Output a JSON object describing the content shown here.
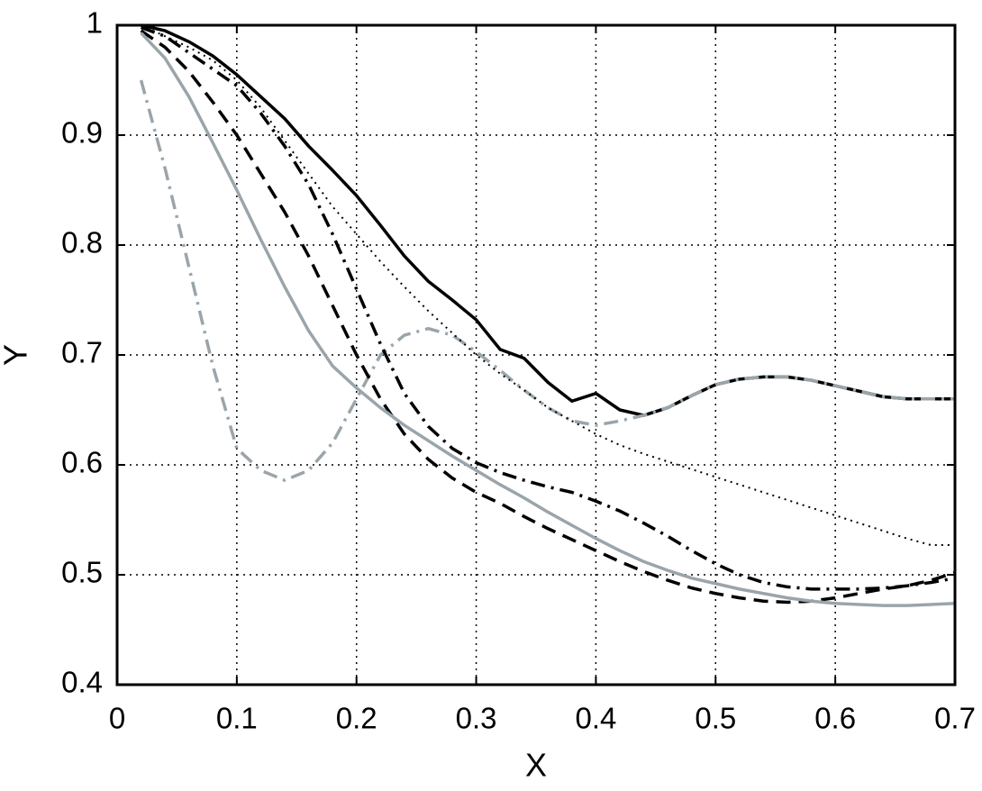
{
  "chart_data": {
    "type": "line",
    "x_label": "X",
    "y_label": "Y",
    "x": [
      0.02,
      0.04,
      0.06,
      0.08,
      0.1,
      0.12,
      0.14,
      0.16,
      0.18,
      0.2,
      0.22,
      0.24,
      0.26,
      0.28,
      0.3,
      0.32,
      0.34,
      0.36,
      0.38,
      0.4,
      0.42,
      0.44,
      0.46,
      0.48,
      0.5,
      0.52,
      0.54,
      0.56,
      0.58,
      0.6,
      0.62,
      0.64,
      0.66,
      0.68,
      0.7
    ],
    "series": [
      {
        "color": "#000000",
        "dash": "solid",
        "values": [
          1.0,
          0.995,
          0.985,
          0.972,
          0.955,
          0.935,
          0.915,
          0.89,
          0.868,
          0.845,
          0.818,
          0.79,
          0.767,
          0.75,
          0.732,
          0.705,
          0.697,
          0.675,
          0.658,
          0.665,
          0.65,
          0.645,
          0.652,
          0.663,
          0.673,
          0.678,
          0.68,
          0.68,
          0.677,
          0.672,
          0.667,
          0.662,
          0.66,
          0.66,
          0.66
        ]
      },
      {
        "color": "#9aa5ab",
        "dash": "dashdot",
        "values": [
          0.95,
          0.87,
          0.78,
          0.69,
          0.615,
          0.595,
          0.586,
          0.595,
          0.62,
          0.66,
          0.7,
          0.718,
          0.724,
          0.718,
          0.703,
          0.686,
          0.668,
          0.652,
          0.64,
          0.636,
          0.64,
          0.645,
          0.652,
          0.663,
          0.673,
          0.678,
          0.68,
          0.68,
          0.677,
          0.672,
          0.667,
          0.662,
          0.66,
          0.66,
          0.66
        ]
      },
      {
        "color": "#000000",
        "dash": "dotted",
        "values": [
          1.0,
          0.99,
          0.98,
          0.968,
          0.95,
          0.925,
          0.895,
          0.865,
          0.835,
          0.81,
          0.785,
          0.762,
          0.74,
          0.72,
          0.7,
          0.683,
          0.668,
          0.652,
          0.64,
          0.628,
          0.618,
          0.61,
          0.603,
          0.596,
          0.589,
          0.582,
          0.575,
          0.568,
          0.561,
          0.554,
          0.547,
          0.54,
          0.533,
          0.527,
          0.527
        ]
      },
      {
        "color": "#000000",
        "dash": "dashdot",
        "values": [
          0.998,
          0.99,
          0.975,
          0.96,
          0.945,
          0.92,
          0.89,
          0.855,
          0.81,
          0.76,
          0.71,
          0.665,
          0.635,
          0.615,
          0.602,
          0.593,
          0.586,
          0.58,
          0.575,
          0.567,
          0.558,
          0.547,
          0.535,
          0.522,
          0.51,
          0.5,
          0.493,
          0.489,
          0.487,
          0.487,
          0.487,
          0.488,
          0.49,
          0.493,
          0.497
        ]
      },
      {
        "color": "#000000",
        "dash": "dashed",
        "values": [
          0.995,
          0.98,
          0.958,
          0.93,
          0.9,
          0.865,
          0.83,
          0.79,
          0.745,
          0.7,
          0.66,
          0.628,
          0.605,
          0.588,
          0.575,
          0.565,
          0.553,
          0.542,
          0.532,
          0.522,
          0.512,
          0.503,
          0.495,
          0.488,
          0.483,
          0.479,
          0.476,
          0.475,
          0.476,
          0.479,
          0.483,
          0.487,
          0.49,
          0.495,
          0.502
        ]
      },
      {
        "color": "#9aa5ab",
        "dash": "solid",
        "values": [
          0.993,
          0.97,
          0.935,
          0.893,
          0.85,
          0.805,
          0.762,
          0.722,
          0.69,
          0.67,
          0.652,
          0.636,
          0.622,
          0.608,
          0.595,
          0.582,
          0.57,
          0.557,
          0.545,
          0.533,
          0.522,
          0.512,
          0.504,
          0.497,
          0.492,
          0.487,
          0.483,
          0.479,
          0.476,
          0.474,
          0.473,
          0.472,
          0.472,
          0.473,
          0.474
        ]
      }
    ],
    "xlim": [
      0,
      0.7
    ],
    "ylim": [
      0.4,
      1
    ],
    "xticks": [
      0,
      0.1,
      0.2,
      0.3,
      0.4,
      0.5,
      0.6,
      0.7
    ],
    "yticks": [
      0.4,
      0.5,
      0.6,
      0.7,
      0.8,
      0.9,
      1
    ],
    "grid": true
  }
}
